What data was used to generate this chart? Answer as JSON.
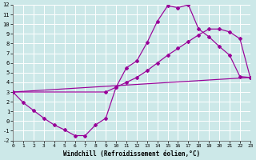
{
  "xlabel": "Windchill (Refroidissement éolien,°C)",
  "bg_color": "#cce8e8",
  "grid_color": "#ffffff",
  "line_color": "#990099",
  "xlim": [
    0,
    23
  ],
  "ylim": [
    -2,
    12
  ],
  "xticks": [
    0,
    1,
    2,
    3,
    4,
    5,
    6,
    7,
    8,
    9,
    10,
    11,
    12,
    13,
    14,
    15,
    16,
    17,
    18,
    19,
    20,
    21,
    22,
    23
  ],
  "yticks": [
    -2,
    -1,
    0,
    1,
    2,
    3,
    4,
    5,
    6,
    7,
    8,
    9,
    10,
    11,
    12
  ],
  "curve1_x": [
    0,
    1,
    2,
    3,
    4,
    5,
    6,
    7,
    8,
    9,
    10,
    11,
    12,
    13,
    14,
    15,
    16,
    17,
    18,
    19,
    20,
    21,
    22,
    23
  ],
  "curve1_y": [
    3.0,
    1.9,
    1.1,
    0.3,
    -0.4,
    -0.9,
    -1.5,
    -1.5,
    -0.4,
    0.3,
    3.5,
    5.5,
    6.2,
    8.1,
    10.3,
    11.9,
    11.7,
    12.0,
    9.5,
    8.7,
    7.7,
    6.8,
    4.6,
    4.5
  ],
  "curve2_x": [
    0,
    23
  ],
  "curve2_y": [
    3.0,
    4.5
  ],
  "curve3_x": [
    0,
    9,
    10,
    11,
    12,
    13,
    14,
    15,
    16,
    17,
    18,
    19,
    20,
    21,
    22,
    23
  ],
  "curve3_y": [
    3.0,
    3.0,
    3.5,
    4.0,
    4.5,
    5.2,
    6.0,
    6.8,
    7.5,
    8.2,
    8.9,
    9.5,
    9.5,
    9.2,
    8.5,
    4.5
  ]
}
